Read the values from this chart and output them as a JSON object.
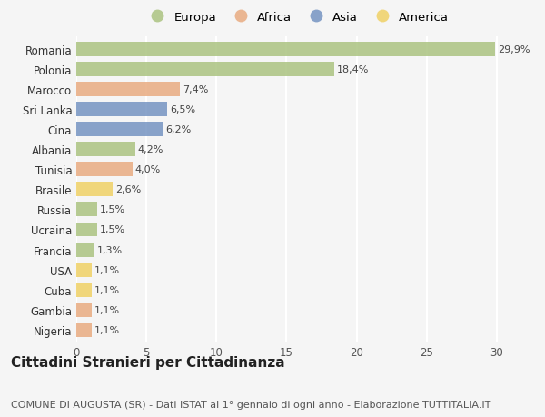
{
  "countries": [
    "Romania",
    "Polonia",
    "Marocco",
    "Sri Lanka",
    "Cina",
    "Albania",
    "Tunisia",
    "Brasile",
    "Russia",
    "Ucraina",
    "Francia",
    "USA",
    "Cuba",
    "Gambia",
    "Nigeria"
  ],
  "values": [
    29.9,
    18.4,
    7.4,
    6.5,
    6.2,
    4.2,
    4.0,
    2.6,
    1.5,
    1.5,
    1.3,
    1.1,
    1.1,
    1.1,
    1.1
  ],
  "labels": [
    "29,9%",
    "18,4%",
    "7,4%",
    "6,5%",
    "6,2%",
    "4,2%",
    "4,0%",
    "2,6%",
    "1,5%",
    "1,5%",
    "1,3%",
    "1,1%",
    "1,1%",
    "1,1%",
    "1,1%"
  ],
  "continents": [
    "Europa",
    "Europa",
    "Africa",
    "Asia",
    "Asia",
    "Europa",
    "Africa",
    "America",
    "Europa",
    "Europa",
    "Europa",
    "America",
    "America",
    "Africa",
    "Africa"
  ],
  "continent_colors": {
    "Europa": "#a8c17c",
    "Africa": "#e8a87c",
    "Asia": "#7090c0",
    "America": "#f0d060"
  },
  "legend_order": [
    "Europa",
    "Africa",
    "Asia",
    "America"
  ],
  "legend_colors": [
    "#a8c17c",
    "#e8a87c",
    "#7090c0",
    "#f0d060"
  ],
  "title": "Cittadini Stranieri per Cittadinanza",
  "subtitle": "COMUNE DI AUGUSTA (SR) - Dati ISTAT al 1° gennaio di ogni anno - Elaborazione TUTTITALIA.IT",
  "xlim": [
    0,
    31.5
  ],
  "xticks": [
    0,
    5,
    10,
    15,
    20,
    25,
    30
  ],
  "background_color": "#f5f5f5",
  "bar_alpha": 0.82,
  "grid_color": "#ffffff",
  "title_fontsize": 11,
  "subtitle_fontsize": 8,
  "label_fontsize": 8,
  "tick_fontsize": 8.5,
  "legend_fontsize": 9.5
}
